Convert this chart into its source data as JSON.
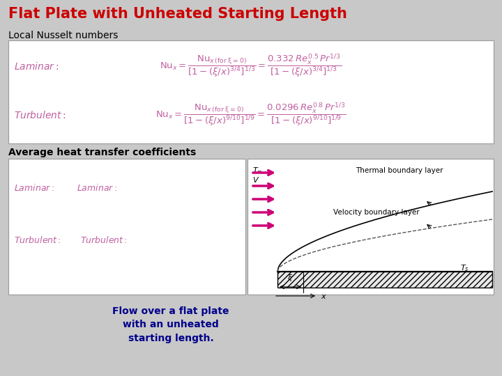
{
  "title": "Flat Plate with Unheated Starting Length",
  "title_color": "#CC0000",
  "bg_color": "#C8C8C8",
  "section1_label": "Local Nusselt numbers",
  "section2_label": "Average heat transfer coefficients",
  "caption": "Flow over a flat plate\nwith an unheated\nstarting length.",
  "caption_color": "#00008B",
  "formula_color": "#C060A0",
  "label_color": "#C060A0",
  "white_box_color": "#FFFFFF",
  "arrow_color": "#CC0077"
}
